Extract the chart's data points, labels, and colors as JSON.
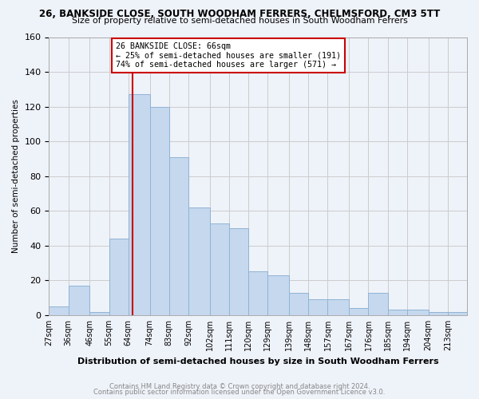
{
  "title1": "26, BANKSIDE CLOSE, SOUTH WOODHAM FERRERS, CHELMSFORD, CM3 5TT",
  "title2": "Size of property relative to semi-detached houses in South Woodham Ferrers",
  "xlabel": "Distribution of semi-detached houses by size in South Woodham Ferrers",
  "ylabel": "Number of semi-detached properties",
  "footer1": "Contains HM Land Registry data © Crown copyright and database right 2024.",
  "footer2": "Contains public sector information licensed under the Open Government Licence v3.0.",
  "annotation_title": "26 BANKSIDE CLOSE: 66sqm",
  "annotation_line1": "← 25% of semi-detached houses are smaller (191)",
  "annotation_line2": "74% of semi-detached houses are larger (571) →",
  "subject_value": 66,
  "categories": [
    "27sqm",
    "36sqm",
    "46sqm",
    "55sqm",
    "64sqm",
    "74sqm",
    "83sqm",
    "92sqm",
    "102sqm",
    "111sqm",
    "120sqm",
    "129sqm",
    "139sqm",
    "148sqm",
    "157sqm",
    "167sqm",
    "176sqm",
    "185sqm",
    "194sqm",
    "204sqm",
    "213sqm"
  ],
  "bin_edges": [
    27,
    36,
    46,
    55,
    64,
    74,
    83,
    92,
    102,
    111,
    120,
    129,
    139,
    148,
    157,
    167,
    176,
    185,
    194,
    204,
    213,
    222
  ],
  "values": [
    5,
    17,
    2,
    44,
    127,
    120,
    91,
    62,
    53,
    50,
    25,
    23,
    13,
    9,
    9,
    4,
    13,
    3,
    3,
    2,
    2
  ],
  "bar_color": "#c5d8ee",
  "bar_edge_color": "#8fb4d4",
  "subject_line_color": "#cc0000",
  "annotation_box_color": "#cc0000",
  "grid_color": "#cccccc",
  "background_color": "#eef2f9",
  "ylim": [
    0,
    160
  ],
  "yticks": [
    0,
    20,
    40,
    60,
    80,
    100,
    120,
    140,
    160
  ]
}
